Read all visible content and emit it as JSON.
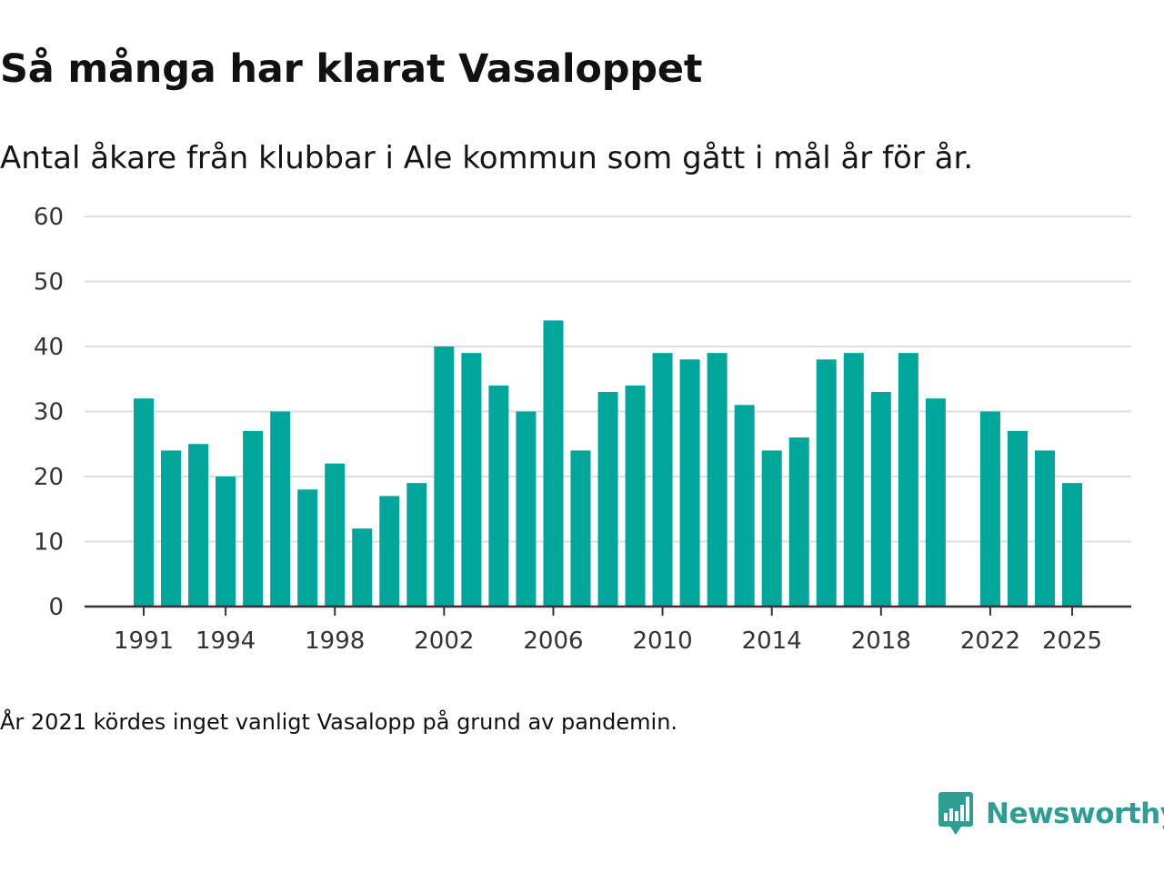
{
  "chart_data": {
    "type": "bar",
    "title": "Så många har klarat Vasaloppet",
    "subtitle": "Antal åkare från klubbar i Ale kommun som gått i mål år för år.",
    "xlabel": "",
    "ylabel": "",
    "ylim": [
      0,
      60
    ],
    "yticks": [
      0,
      10,
      20,
      30,
      40,
      50,
      60
    ],
    "xtick_labels": [
      "1991",
      "1994",
      "1998",
      "2002",
      "2006",
      "2010",
      "2014",
      "2018",
      "2022",
      "2025"
    ],
    "grid": true,
    "bar_color": "#00a69a",
    "categories": [
      1991,
      1992,
      1993,
      1994,
      1995,
      1996,
      1997,
      1998,
      1999,
      2000,
      2001,
      2002,
      2003,
      2004,
      2005,
      2006,
      2007,
      2008,
      2009,
      2010,
      2011,
      2012,
      2013,
      2014,
      2015,
      2016,
      2017,
      2018,
      2019,
      2020,
      2021,
      2022,
      2023,
      2024,
      2025
    ],
    "values": [
      32,
      24,
      25,
      20,
      27,
      30,
      18,
      22,
      12,
      17,
      19,
      40,
      39,
      34,
      30,
      44,
      24,
      33,
      34,
      39,
      38,
      39,
      31,
      24,
      26,
      38,
      39,
      33,
      39,
      32,
      null,
      30,
      27,
      24,
      19
    ]
  },
  "footnote": "År 2021 kördes inget vanligt Vasalopp på grund av pandemin.",
  "brand": {
    "name": "Newsworthy",
    "icon": "newsworthy-logo-icon",
    "color": "#2e9d94"
  }
}
